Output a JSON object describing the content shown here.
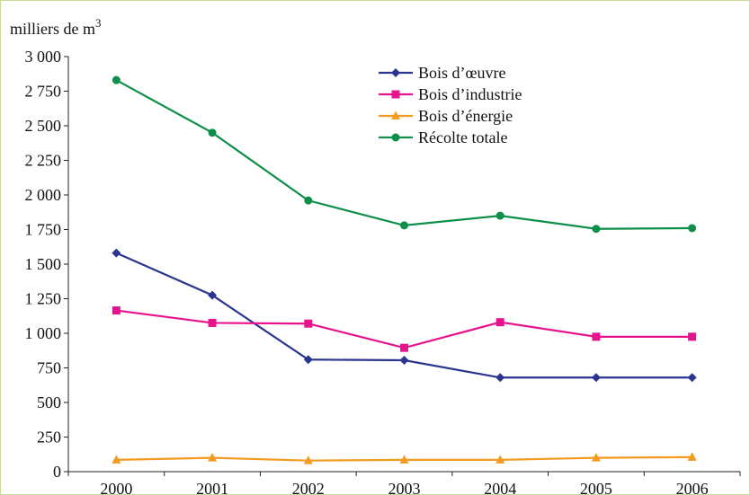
{
  "chart_data": {
    "type": "line",
    "title": "",
    "ylabel": "milliers de m",
    "ylabel_superscript": "3",
    "xlabel": "",
    "x": [
      "2000",
      "2001",
      "2002",
      "2003",
      "2004",
      "2005",
      "2006"
    ],
    "ylim": [
      0,
      3000
    ],
    "yticks": [
      0,
      250,
      500,
      750,
      1000,
      1250,
      1500,
      1750,
      2000,
      2250,
      2500,
      2750,
      3000
    ],
    "ytick_labels": [
      "0",
      "250",
      "500",
      "750",
      "1 000",
      "1 250",
      "1 500",
      "1 750",
      "2 000",
      "2 250",
      "2 500",
      "2 750",
      "3 000"
    ],
    "grid": false,
    "legend_position": "top-right",
    "series": [
      {
        "name": "Bois d’œuvre",
        "color": "#2b3590",
        "marker": "diamond",
        "values": [
          1580,
          1275,
          810,
          805,
          680,
          680,
          680
        ]
      },
      {
        "name": "Bois d’industrie",
        "color": "#e6138c",
        "marker": "square",
        "values": [
          1165,
          1075,
          1070,
          895,
          1080,
          975,
          975
        ]
      },
      {
        "name": "Bois d’énergie",
        "color": "#f39a21",
        "marker": "triangle",
        "values": [
          85,
          100,
          80,
          85,
          85,
          100,
          105
        ]
      },
      {
        "name": "Récolte totale",
        "color": "#0d8f4a",
        "marker": "circle",
        "values": [
          2830,
          2450,
          1960,
          1780,
          1850,
          1755,
          1760
        ]
      }
    ]
  }
}
